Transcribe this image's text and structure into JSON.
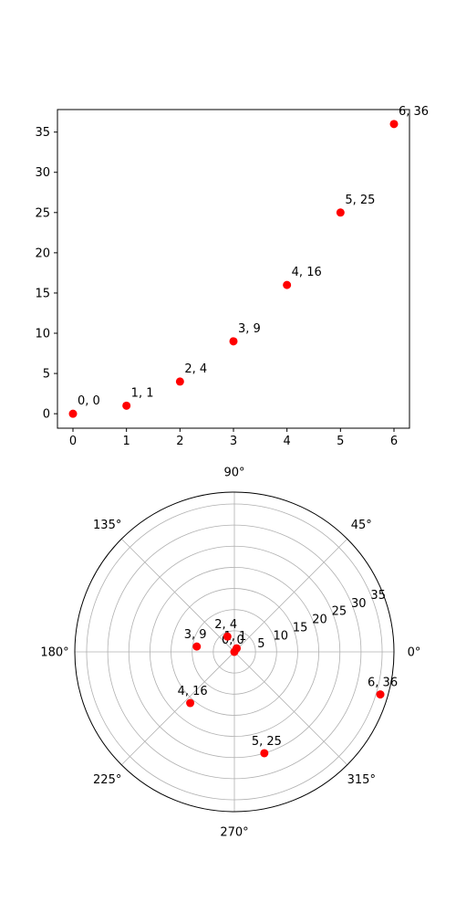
{
  "colors": {
    "marker": "#ff0000",
    "grid": "#b0b0b0"
  },
  "chart_data": [
    {
      "type": "scatter",
      "title": "",
      "xlabel": "",
      "ylabel": "",
      "x": [
        0,
        1,
        2,
        3,
        4,
        5,
        6
      ],
      "y": [
        0,
        1,
        4,
        9,
        16,
        25,
        36
      ],
      "point_labels": [
        "0, 0",
        "1, 1",
        "2, 4",
        "3, 9",
        "4, 16",
        "5, 25",
        "6, 36"
      ],
      "xlim": [
        -0.29,
        6.29
      ],
      "ylim": [
        -1.8,
        37.8
      ],
      "xticks": [
        0,
        1,
        2,
        3,
        4,
        5,
        6
      ],
      "xtick_labels": [
        "0",
        "1",
        "2",
        "3",
        "4",
        "5",
        "6"
      ],
      "yticks": [
        0,
        5,
        10,
        15,
        20,
        25,
        30,
        35
      ],
      "ytick_labels": [
        "0",
        "5",
        "10",
        "15",
        "20",
        "25",
        "30",
        "35"
      ],
      "grid": false
    },
    {
      "type": "scatter",
      "projection": "polar",
      "title": "",
      "theta_radians": [
        0,
        1,
        2,
        3,
        4,
        5,
        6
      ],
      "r": [
        0,
        1,
        4,
        9,
        16,
        25,
        36
      ],
      "point_labels": [
        "0, 0",
        "1, 1",
        "2, 4",
        "3, 9",
        "4, 16",
        "5, 25",
        "6, 36"
      ],
      "rlim": [
        0,
        37.8
      ],
      "rticks": [
        5,
        10,
        15,
        20,
        25,
        30,
        35
      ],
      "rtick_labels": [
        "5",
        "10",
        "15",
        "20",
        "25",
        "30",
        "35"
      ],
      "theta_ticks_deg": [
        0,
        45,
        90,
        135,
        180,
        225,
        270,
        315
      ],
      "theta_tick_labels": [
        "0°",
        "45°",
        "90°",
        "135°",
        "180°",
        "225°",
        "270°",
        "315°"
      ],
      "grid": true
    }
  ]
}
